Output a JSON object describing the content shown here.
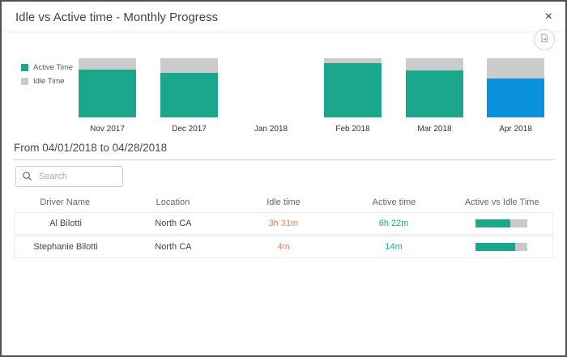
{
  "dialog": {
    "title": "Idle vs Active time - Monthly Progress",
    "close_label": "×"
  },
  "chart_data": {
    "type": "bar",
    "stacked": true,
    "categories": [
      "Nov 2017",
      "Dec 2017",
      "Jan 2018",
      "Feb 2018",
      "Mar 2018",
      "Apr 2018"
    ],
    "series": [
      {
        "name": "Active Time",
        "values_pct": [
          81,
          75,
          0,
          92,
          79,
          66
        ],
        "color": "#1aa78c"
      },
      {
        "name": "Idle Time",
        "values_pct": [
          19,
          25,
          0,
          8,
          21,
          34
        ],
        "color": "#cbcbcb"
      }
    ],
    "highlight": {
      "category": "Apr 2018",
      "series": "Active Time",
      "color": "#0a91dd"
    },
    "title": "Idle vs Active time - Monthly Progress",
    "legend_position": "left",
    "axes": "none",
    "ylim": [
      0,
      100
    ]
  },
  "filter": {
    "date_range": "From 04/01/2018 to 04/28/2018"
  },
  "search": {
    "placeholder": "Search",
    "value": ""
  },
  "table": {
    "headers": [
      "Driver Name",
      "Location",
      "Idle time",
      "Active time",
      "Active vs Idle Time"
    ],
    "rows": [
      {
        "driver_name": "Al Bilotti",
        "location": "North CA",
        "idle_time": "3h 31m",
        "active_time": "6h 22m",
        "active_pct": 67
      },
      {
        "driver_name": "Stephanie Bilotti",
        "location": "North CA",
        "idle_time": "4m",
        "active_time": "14m",
        "active_pct": 76
      }
    ]
  },
  "colors": {
    "active": "#1aa78c",
    "idle": "#cbcbcb",
    "highlight_month": "#0a91dd",
    "idle_time_text": "#e8805f",
    "active_time_text": "#1aa78c"
  }
}
